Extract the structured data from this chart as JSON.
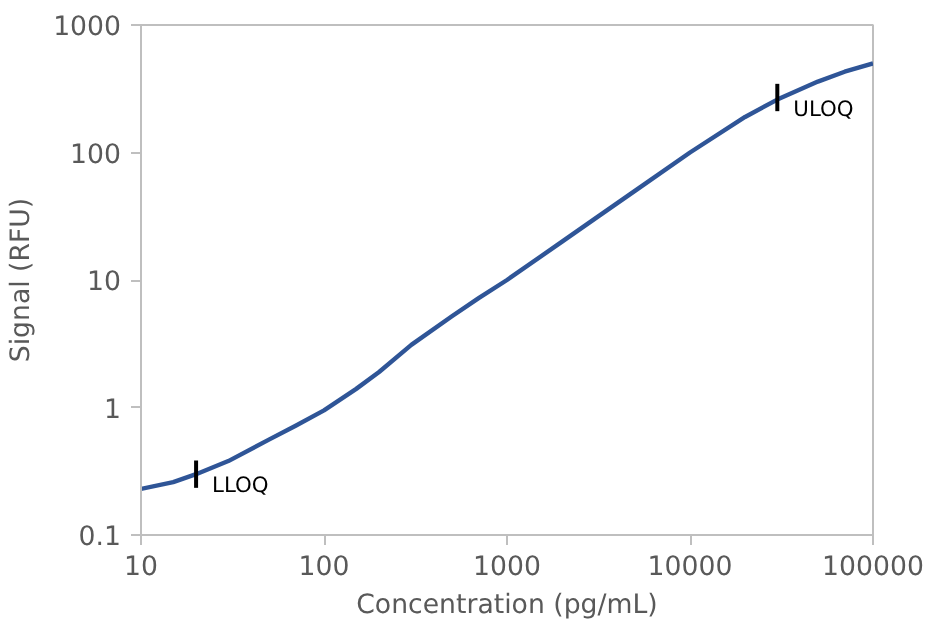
{
  "chart_data": {
    "type": "line",
    "xlabel": "Concentration (pg/mL)",
    "ylabel": "Signal (RFU)",
    "log": "xy",
    "grid": false,
    "marker": "none",
    "line_style": "solid",
    "xlim": [
      10,
      100000
    ],
    "xticks": [
      10,
      100,
      1000,
      10000,
      100000
    ],
    "ylim": [
      0.1,
      1000
    ],
    "yticks": [
      0.1,
      1,
      10,
      100,
      1000
    ],
    "x": [
      10,
      15,
      20,
      30,
      50,
      70,
      100,
      150,
      200,
      300,
      500,
      700,
      1000,
      2000,
      3000,
      5000,
      10000,
      20000,
      30000,
      50000,
      70000,
      100000
    ],
    "series": [
      {
        "color": "#2f5597",
        "values": [
          0.23,
          0.26,
          0.3,
          0.38,
          0.56,
          0.72,
          0.95,
          1.4,
          1.9,
          3.1,
          5.2,
          7.2,
          10,
          20,
          30,
          50,
          100,
          190,
          260,
          360,
          430,
          500
        ]
      }
    ],
    "annotations": [
      {
        "text": "LLOQ",
        "x": 20,
        "y": 0.3
      },
      {
        "text": "ULOQ",
        "x": 30000,
        "y": 270
      }
    ]
  }
}
